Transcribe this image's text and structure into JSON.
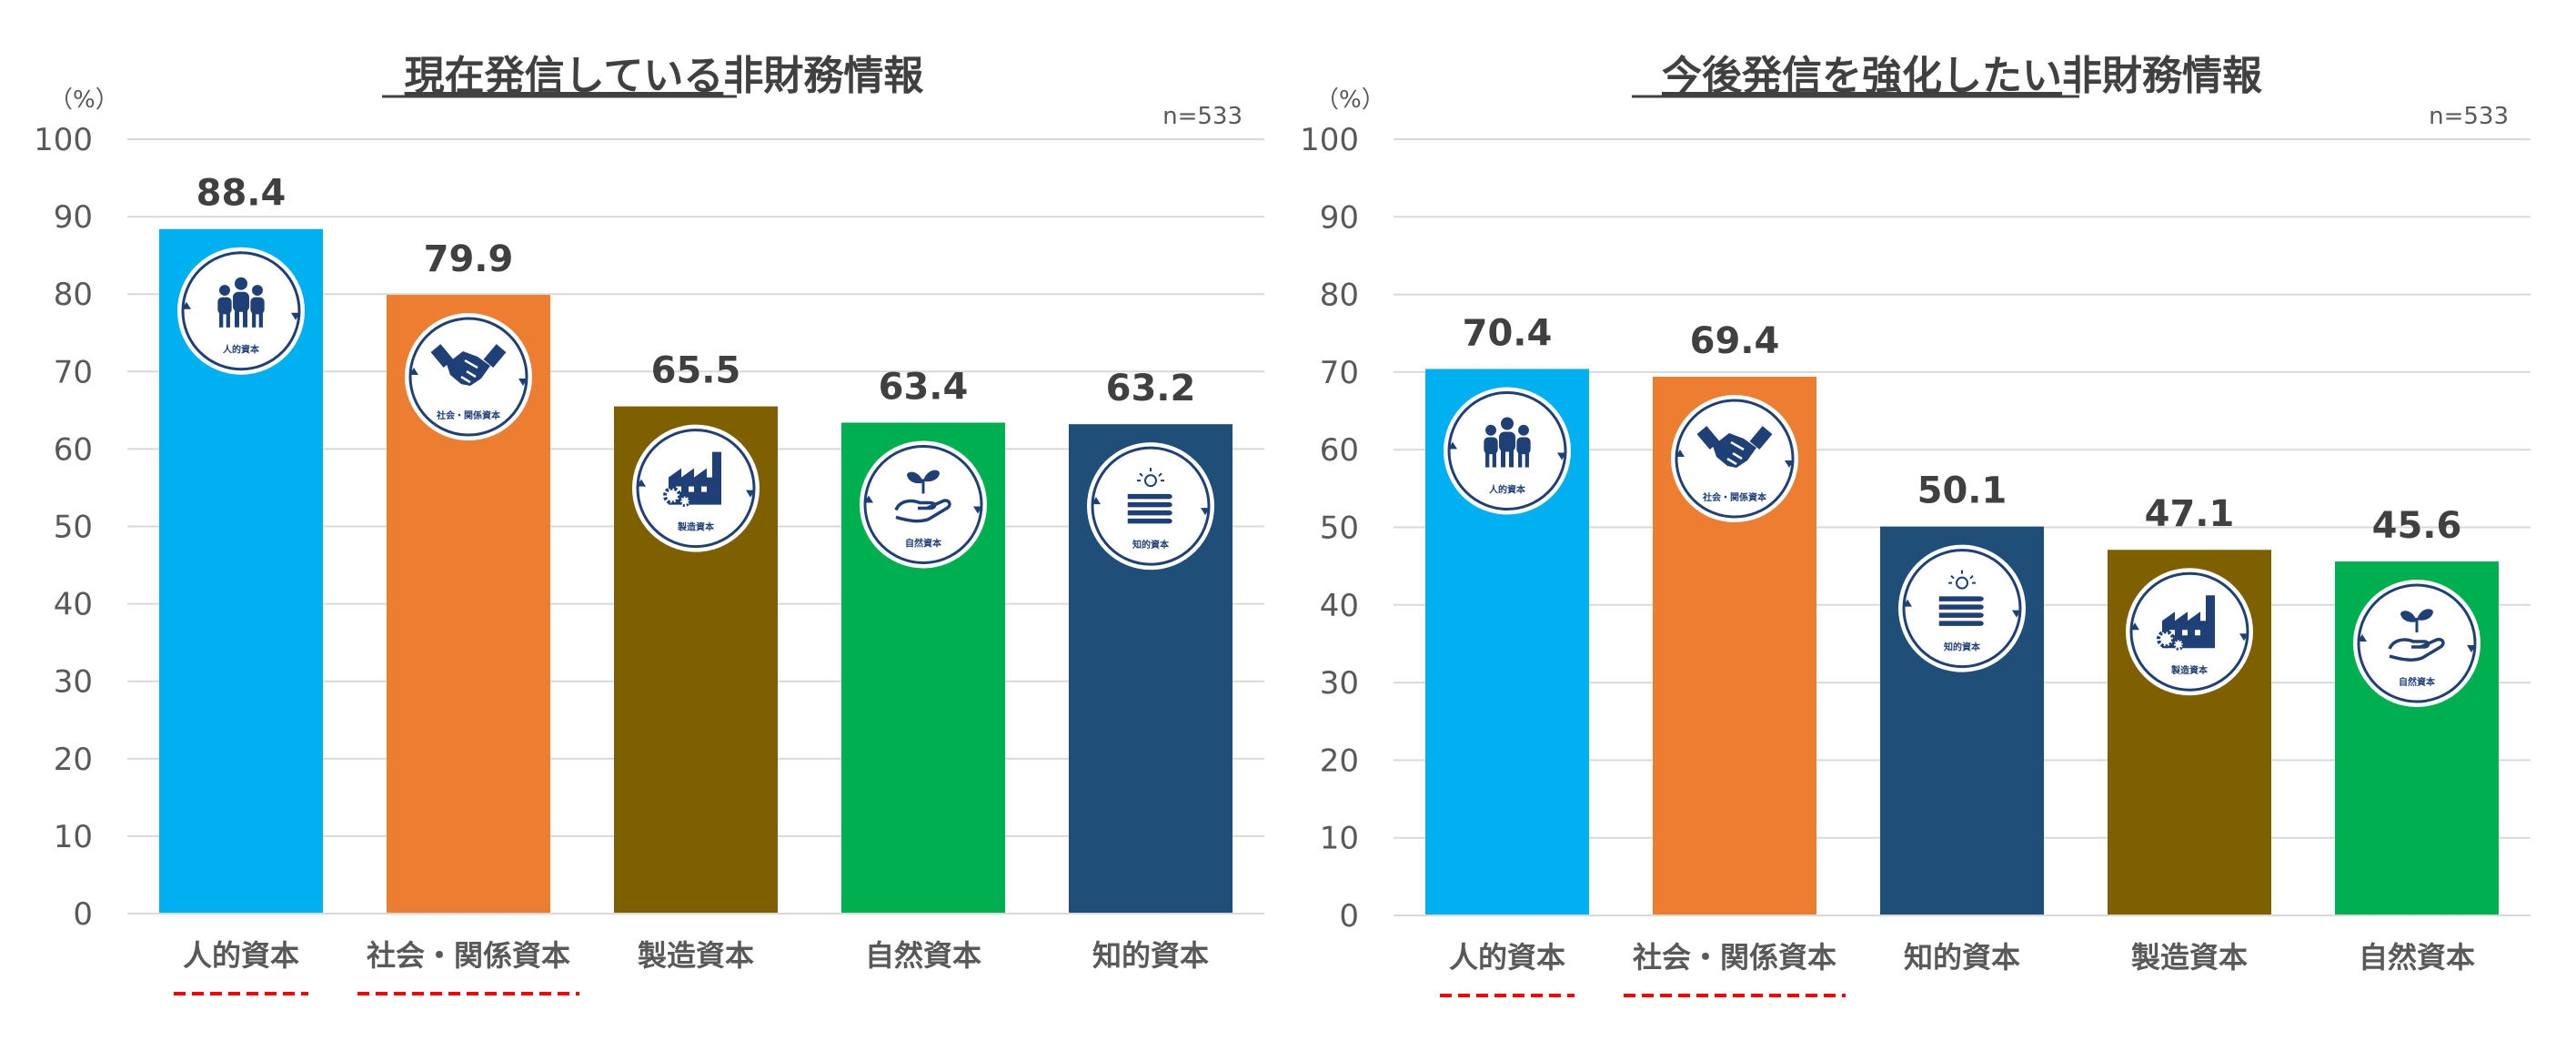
{
  "chart_data": [
    {
      "type": "bar",
      "title": "現在発信している非財務情報",
      "title_underlined_part": "現在発信している",
      "title_rest": "非財務情報",
      "unit": "（%）",
      "n": "n=533",
      "ylim": [
        0,
        100
      ],
      "yticks": [
        0,
        10,
        20,
        30,
        40,
        50,
        60,
        70,
        80,
        90,
        100
      ],
      "categories": [
        "人的資本",
        "社会・関係資本",
        "製造資本",
        "自然資本",
        "知的資本"
      ],
      "values": [
        88.4,
        79.9,
        65.5,
        63.4,
        63.2
      ],
      "value_labels": [
        "88.4",
        "79.9",
        "65.5",
        "63.4",
        "63.2"
      ],
      "colors": [
        "#00B0F0",
        "#ED7D31",
        "#7F6000",
        "#00B050",
        "#1F4E79"
      ],
      "icons": [
        "people-icon",
        "handshake-icon",
        "factory-icon",
        "plant-hand-icon",
        "books-idea-icon"
      ],
      "icon_labels": [
        "人的資本",
        "社会・関係資本",
        "製造資本",
        "自然資本",
        "知的資本"
      ],
      "highlighted": [
        true,
        true,
        false,
        false,
        false
      ],
      "highlight_color": "#FF0000"
    },
    {
      "type": "bar",
      "title": "今後発信を強化したい非財務情報",
      "title_underlined_part": "今後発信を強化したい",
      "title_rest": "非財務情報",
      "unit": "（%）",
      "n": "n=533",
      "ylim": [
        0,
        100
      ],
      "yticks": [
        0,
        10,
        20,
        30,
        40,
        50,
        60,
        70,
        80,
        90,
        100
      ],
      "categories": [
        "人的資本",
        "社会・関係資本",
        "知的資本",
        "製造資本",
        "自然資本"
      ],
      "values": [
        70.4,
        69.4,
        50.1,
        47.1,
        45.6
      ],
      "value_labels": [
        "70.4",
        "69.4",
        "50.1",
        "47.1",
        "45.6"
      ],
      "colors": [
        "#00B0F0",
        "#ED7D31",
        "#1F4E79",
        "#7F6000",
        "#00B050"
      ],
      "icons": [
        "people-icon",
        "handshake-icon",
        "books-idea-icon",
        "factory-icon",
        "plant-hand-icon"
      ],
      "icon_labels": [
        "人的資本",
        "社会・関係資本",
        "知的資本",
        "製造資本",
        "自然資本"
      ],
      "highlighted": [
        true,
        true,
        false,
        false,
        false
      ],
      "highlight_color": "#FF0000"
    }
  ],
  "style": {
    "axis_text_color": "#595959",
    "value_label_color": "#404040",
    "title_color": "#404040",
    "grid_color": "#D9D9D9",
    "icon_fill": "#1F3F77"
  }
}
